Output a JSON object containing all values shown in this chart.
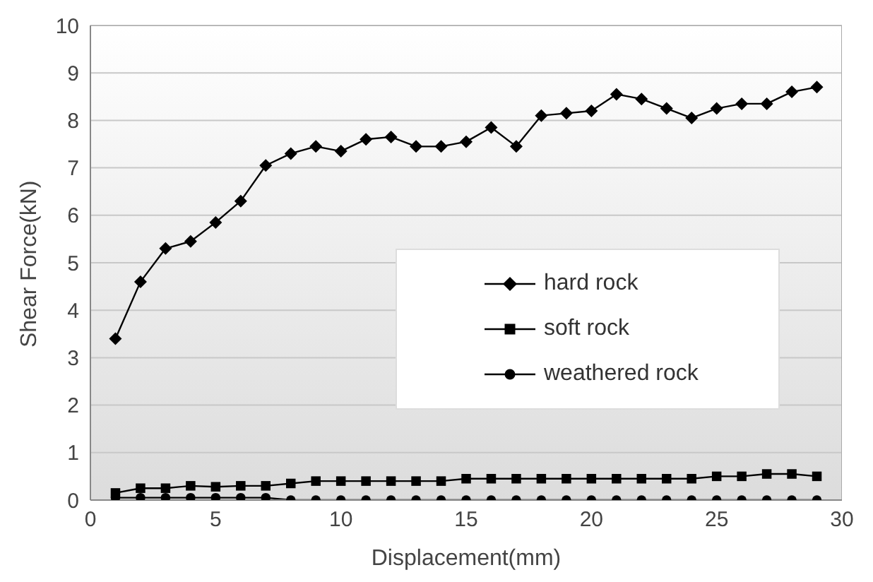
{
  "chart_data": {
    "type": "line",
    "xlabel": "Displacement(mm)",
    "ylabel": "Shear Force(kN)",
    "x": [
      1,
      2,
      3,
      4,
      5,
      6,
      7,
      8,
      9,
      10,
      11,
      12,
      13,
      14,
      15,
      16,
      17,
      18,
      19,
      20,
      21,
      22,
      23,
      24,
      25,
      26,
      27,
      28,
      29
    ],
    "series": [
      {
        "name": "hard rock",
        "color": "#000000",
        "marker": "diamond",
        "values": [
          3.4,
          4.6,
          5.3,
          5.45,
          5.85,
          6.3,
          7.05,
          7.3,
          7.45,
          7.35,
          7.6,
          7.65,
          7.45,
          7.45,
          7.55,
          7.85,
          7.45,
          8.1,
          8.15,
          8.2,
          8.55,
          8.45,
          8.25,
          8.05,
          8.25,
          8.35,
          8.35,
          8.6,
          8.7
        ]
      },
      {
        "name": "soft rock",
        "color": "#000000",
        "marker": "square",
        "values": [
          0.15,
          0.25,
          0.25,
          0.3,
          0.28,
          0.3,
          0.3,
          0.35,
          0.4,
          0.4,
          0.4,
          0.4,
          0.4,
          0.4,
          0.45,
          0.45,
          0.45,
          0.45,
          0.45,
          0.45,
          0.45,
          0.45,
          0.45,
          0.45,
          0.5,
          0.5,
          0.55,
          0.55,
          0.5
        ]
      },
      {
        "name": "weathered rock",
        "color": "#000000",
        "marker": "circle",
        "values": [
          0.05,
          0.05,
          0.05,
          0.05,
          0.05,
          0.05,
          0.05,
          0,
          0,
          0,
          0,
          0,
          0,
          0,
          0,
          0,
          0,
          0,
          0,
          0,
          0,
          0,
          0,
          0,
          0,
          0,
          0,
          0,
          0
        ]
      }
    ],
    "xlim": [
      0,
      30
    ],
    "xticks": [
      0,
      5,
      10,
      15,
      20,
      25,
      30
    ],
    "ylim": [
      0,
      10
    ],
    "yticks": [
      0,
      1,
      2,
      3,
      4,
      5,
      6,
      7,
      8,
      9,
      10
    ],
    "grid": "y",
    "legend": "right",
    "line_style": "solid"
  }
}
